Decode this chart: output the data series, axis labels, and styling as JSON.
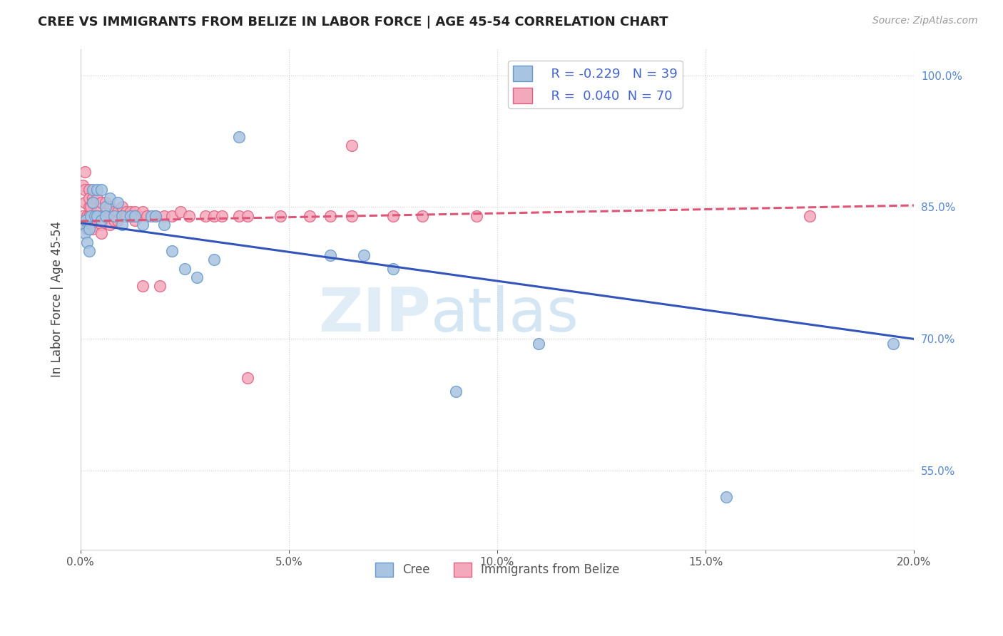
{
  "title": "CREE VS IMMIGRANTS FROM BELIZE IN LABOR FORCE | AGE 45-54 CORRELATION CHART",
  "source": "Source: ZipAtlas.com",
  "ylabel": "In Labor Force | Age 45-54",
  "xlim": [
    0.0,
    0.2
  ],
  "ylim": [
    0.46,
    1.03
  ],
  "xticks": [
    0.0,
    0.05,
    0.1,
    0.15,
    0.2
  ],
  "xticklabels": [
    "0.0%",
    "5.0%",
    "10.0%",
    "15.0%",
    "20.0%"
  ],
  "yticks": [
    0.55,
    0.7,
    0.85,
    1.0
  ],
  "yticklabels": [
    "55.0%",
    "70.0%",
    "85.0%",
    "100.0%"
  ],
  "grid_color": "#cccccc",
  "background_color": "#ffffff",
  "cree_color": "#a8c4e0",
  "belize_color": "#f4a8bc",
  "cree_edge_color": "#6699cc",
  "belize_edge_color": "#e06080",
  "trend_cree_color": "#3355bb",
  "trend_belize_color": "#dd5577",
  "legend_r_cree": "R = -0.229",
  "legend_n_cree": "N = 39",
  "legend_r_belize": "R =  0.040",
  "legend_n_belize": "N = 70",
  "watermark_zip": "ZIP",
  "watermark_atlas": "atlas",
  "cree_x": [
    0.0008,
    0.001,
    0.0012,
    0.0015,
    0.002,
    0.002,
    0.0025,
    0.003,
    0.003,
    0.0035,
    0.004,
    0.004,
    0.005,
    0.005,
    0.006,
    0.006,
    0.007,
    0.008,
    0.009,
    0.01,
    0.01,
    0.012,
    0.013,
    0.015,
    0.017,
    0.018,
    0.02,
    0.022,
    0.025,
    0.028,
    0.032,
    0.038,
    0.06,
    0.068,
    0.075,
    0.09,
    0.11,
    0.155,
    0.195
  ],
  "cree_y": [
    0.83,
    0.82,
    0.835,
    0.81,
    0.825,
    0.8,
    0.84,
    0.855,
    0.87,
    0.84,
    0.87,
    0.84,
    0.87,
    0.835,
    0.85,
    0.84,
    0.86,
    0.84,
    0.855,
    0.84,
    0.83,
    0.84,
    0.84,
    0.83,
    0.84,
    0.84,
    0.83,
    0.8,
    0.78,
    0.77,
    0.79,
    0.93,
    0.795,
    0.795,
    0.78,
    0.64,
    0.695,
    0.52,
    0.695
  ],
  "belize_x": [
    0.0005,
    0.0005,
    0.001,
    0.001,
    0.001,
    0.001,
    0.0015,
    0.0015,
    0.002,
    0.002,
    0.002,
    0.002,
    0.0025,
    0.0025,
    0.003,
    0.003,
    0.003,
    0.003,
    0.004,
    0.004,
    0.004,
    0.004,
    0.005,
    0.005,
    0.005,
    0.005,
    0.006,
    0.006,
    0.006,
    0.007,
    0.007,
    0.007,
    0.008,
    0.008,
    0.009,
    0.009,
    0.01,
    0.01,
    0.01,
    0.011,
    0.011,
    0.012,
    0.012,
    0.013,
    0.013,
    0.014,
    0.015,
    0.015,
    0.016,
    0.018,
    0.019,
    0.02,
    0.022,
    0.024,
    0.026,
    0.03,
    0.032,
    0.034,
    0.038,
    0.04,
    0.04,
    0.048,
    0.055,
    0.06,
    0.065,
    0.065,
    0.075,
    0.082,
    0.095,
    0.175
  ],
  "belize_y": [
    0.84,
    0.875,
    0.855,
    0.87,
    0.83,
    0.89,
    0.84,
    0.825,
    0.85,
    0.84,
    0.87,
    0.86,
    0.85,
    0.83,
    0.86,
    0.855,
    0.84,
    0.825,
    0.86,
    0.845,
    0.835,
    0.84,
    0.855,
    0.84,
    0.83,
    0.82,
    0.855,
    0.84,
    0.84,
    0.85,
    0.84,
    0.83,
    0.845,
    0.835,
    0.845,
    0.835,
    0.85,
    0.84,
    0.84,
    0.845,
    0.84,
    0.845,
    0.84,
    0.845,
    0.835,
    0.84,
    0.845,
    0.76,
    0.84,
    0.84,
    0.76,
    0.84,
    0.84,
    0.845,
    0.84,
    0.84,
    0.84,
    0.84,
    0.84,
    0.84,
    0.656,
    0.84,
    0.84,
    0.84,
    0.84,
    0.92,
    0.84,
    0.84,
    0.84,
    0.84
  ],
  "trend_cree_x0": 0.0,
  "trend_cree_y0": 0.832,
  "trend_cree_x1": 0.2,
  "trend_cree_y1": 0.7,
  "trend_belize_x0": 0.0,
  "trend_belize_y0": 0.834,
  "trend_belize_x1": 0.2,
  "trend_belize_y1": 0.852
}
